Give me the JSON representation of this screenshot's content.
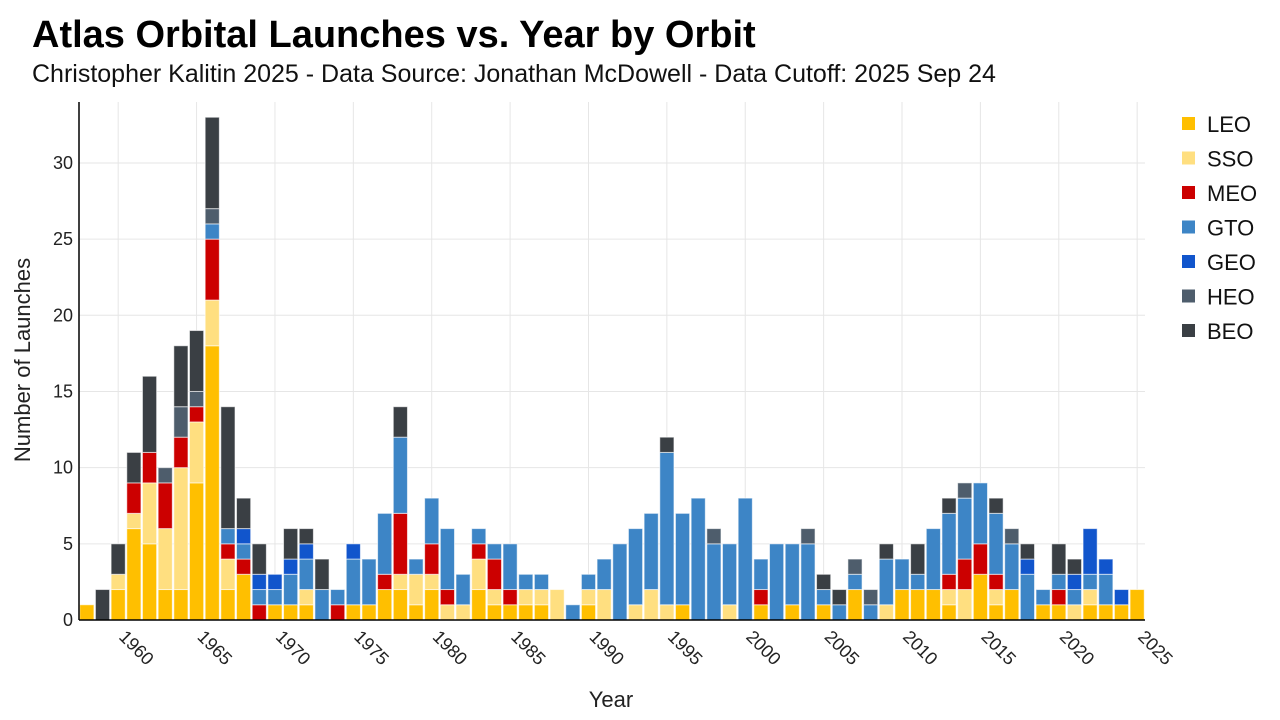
{
  "chart_data": {
    "type": "bar",
    "stacked": true,
    "title": "Atlas Orbital Launches vs. Year by Orbit",
    "subtitle": "Christopher Kalitin 2025 - Data Source: Jonathan McDowell - Data Cutoff: 2025 Sep 24",
    "xlabel": "Year",
    "ylabel": "Number of Launches",
    "xlim": [
      1958,
      2025
    ],
    "ylim": [
      0,
      34
    ],
    "x_ticks": [
      1960,
      1965,
      1970,
      1975,
      1980,
      1985,
      1990,
      1995,
      2000,
      2005,
      2010,
      2015,
      2020,
      2025
    ],
    "y_ticks": [
      0,
      5,
      10,
      15,
      20,
      25,
      30
    ],
    "grid": true,
    "legend_position": "right",
    "series_order": [
      "LEO",
      "SSO",
      "MEO",
      "GTO",
      "GEO",
      "HEO",
      "BEO"
    ],
    "colors": {
      "LEO": "#FFBF00",
      "SSO": "#FFDF80",
      "MEO": "#CC0000",
      "GTO": "#3D85C6",
      "GEO": "#1155CC",
      "HEO": "#4E5D6C",
      "BEO": "#3A3F44"
    },
    "years": [
      1958,
      1959,
      1960,
      1961,
      1962,
      1963,
      1964,
      1965,
      1966,
      1967,
      1968,
      1969,
      1970,
      1971,
      1972,
      1973,
      1974,
      1975,
      1976,
      1977,
      1978,
      1979,
      1980,
      1981,
      1982,
      1983,
      1984,
      1985,
      1986,
      1987,
      1988,
      1989,
      1990,
      1991,
      1992,
      1993,
      1994,
      1995,
      1996,
      1997,
      1998,
      1999,
      2000,
      2001,
      2002,
      2003,
      2004,
      2005,
      2006,
      2007,
      2008,
      2009,
      2010,
      2011,
      2012,
      2013,
      2014,
      2015,
      2016,
      2017,
      2018,
      2019,
      2020,
      2021,
      2022,
      2023,
      2024,
      2025
    ],
    "series": [
      {
        "name": "LEO",
        "values": [
          1,
          0,
          2,
          6,
          5,
          2,
          2,
          9,
          18,
          2,
          3,
          0,
          1,
          1,
          1,
          0,
          0,
          1,
          1,
          2,
          2,
          1,
          2,
          0,
          0,
          2,
          1,
          1,
          1,
          1,
          0,
          0,
          1,
          0,
          0,
          0,
          0,
          0,
          1,
          0,
          0,
          0,
          0,
          1,
          0,
          1,
          0,
          1,
          0,
          2,
          0,
          0,
          2,
          2,
          2,
          1,
          0,
          3,
          1,
          2,
          0,
          1,
          1,
          0,
          1,
          1,
          1,
          2
        ]
      },
      {
        "name": "SSO",
        "values": [
          0,
          0,
          1,
          1,
          4,
          4,
          8,
          4,
          3,
          2,
          0,
          0,
          0,
          0,
          1,
          0,
          0,
          0,
          0,
          0,
          1,
          2,
          1,
          1,
          1,
          2,
          1,
          0,
          1,
          1,
          2,
          0,
          1,
          2,
          0,
          1,
          2,
          1,
          0,
          0,
          0,
          1,
          0,
          0,
          0,
          0,
          0,
          0,
          0,
          0,
          0,
          1,
          0,
          0,
          0,
          1,
          2,
          0,
          1,
          0,
          0,
          0,
          0,
          1,
          1,
          0,
          0,
          0
        ]
      },
      {
        "name": "MEO",
        "values": [
          0,
          0,
          0,
          2,
          2,
          3,
          2,
          1,
          4,
          1,
          1,
          1,
          0,
          0,
          0,
          0,
          1,
          0,
          0,
          1,
          4,
          0,
          2,
          1,
          0,
          1,
          2,
          1,
          0,
          0,
          0,
          0,
          0,
          0,
          0,
          0,
          0,
          0,
          0,
          0,
          0,
          0,
          0,
          1,
          0,
          0,
          0,
          0,
          0,
          0,
          0,
          0,
          0,
          0,
          0,
          1,
          2,
          2,
          1,
          0,
          0,
          0,
          1,
          0,
          0,
          0,
          0,
          0
        ]
      },
      {
        "name": "GTO",
        "values": [
          0,
          0,
          0,
          0,
          0,
          0,
          0,
          0,
          1,
          1,
          1,
          1,
          1,
          2,
          2,
          2,
          1,
          3,
          3,
          4,
          5,
          1,
          3,
          4,
          2,
          1,
          1,
          3,
          1,
          1,
          0,
          1,
          1,
          2,
          5,
          5,
          5,
          10,
          6,
          8,
          5,
          4,
          8,
          2,
          5,
          4,
          5,
          1,
          1,
          1,
          1,
          3,
          2,
          1,
          4,
          4,
          4,
          4,
          4,
          3,
          3,
          1,
          1,
          1,
          1,
          2,
          0,
          0
        ]
      },
      {
        "name": "GEO",
        "values": [
          0,
          0,
          0,
          0,
          0,
          0,
          0,
          0,
          0,
          0,
          1,
          1,
          1,
          1,
          1,
          0,
          0,
          1,
          0,
          0,
          0,
          0,
          0,
          0,
          0,
          0,
          0,
          0,
          0,
          0,
          0,
          0,
          0,
          0,
          0,
          0,
          0,
          0,
          0,
          0,
          0,
          0,
          0,
          0,
          0,
          0,
          0,
          0,
          0,
          0,
          0,
          0,
          0,
          0,
          0,
          0,
          0,
          0,
          0,
          0,
          1,
          0,
          0,
          1,
          3,
          1,
          1,
          0
        ]
      },
      {
        "name": "HEO",
        "values": [
          0,
          0,
          0,
          0,
          0,
          1,
          2,
          1,
          1,
          0,
          0,
          0,
          0,
          0,
          0,
          0,
          0,
          0,
          0,
          0,
          0,
          0,
          0,
          0,
          0,
          0,
          0,
          0,
          0,
          0,
          0,
          0,
          0,
          0,
          0,
          0,
          0,
          0,
          0,
          0,
          1,
          0,
          0,
          0,
          0,
          0,
          1,
          0,
          0,
          1,
          1,
          0,
          0,
          0,
          0,
          0,
          1,
          0,
          0,
          1,
          0,
          0,
          0,
          0,
          0,
          0,
          0,
          0
        ]
      },
      {
        "name": "BEO",
        "values": [
          0,
          2,
          2,
          2,
          5,
          0,
          4,
          4,
          6,
          8,
          2,
          2,
          0,
          2,
          1,
          2,
          0,
          0,
          0,
          0,
          2,
          0,
          0,
          0,
          0,
          0,
          0,
          0,
          0,
          0,
          0,
          0,
          0,
          0,
          0,
          0,
          0,
          1,
          0,
          0,
          0,
          0,
          0,
          0,
          0,
          0,
          0,
          1,
          1,
          0,
          0,
          1,
          0,
          2,
          0,
          1,
          0,
          0,
          1,
          0,
          1,
          0,
          2,
          1,
          0,
          0,
          0,
          0
        ]
      }
    ]
  }
}
